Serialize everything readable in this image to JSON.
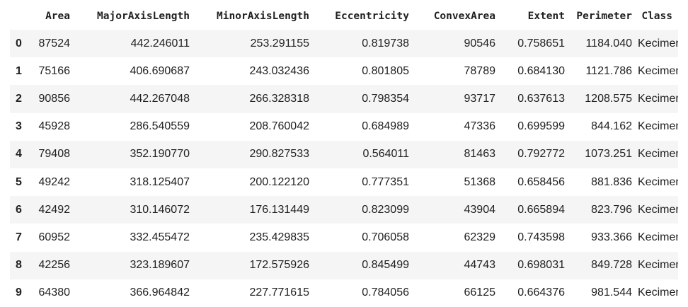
{
  "table": {
    "columns": [
      "Area",
      "MajorAxisLength",
      "MinorAxisLength",
      "Eccentricity",
      "ConvexArea",
      "Extent",
      "Perimeter",
      "Class"
    ],
    "rows": [
      {
        "index": "0",
        "cells": [
          "87524",
          "442.246011",
          "253.291155",
          "0.819738",
          "90546",
          "0.758651",
          "1184.040",
          "Kecimen"
        ]
      },
      {
        "index": "1",
        "cells": [
          "75166",
          "406.690687",
          "243.032436",
          "0.801805",
          "78789",
          "0.684130",
          "1121.786",
          "Kecimen"
        ]
      },
      {
        "index": "2",
        "cells": [
          "90856",
          "442.267048",
          "266.328318",
          "0.798354",
          "93717",
          "0.637613",
          "1208.575",
          "Kecimen"
        ]
      },
      {
        "index": "3",
        "cells": [
          "45928",
          "286.540559",
          "208.760042",
          "0.684989",
          "47336",
          "0.699599",
          "844.162",
          "Kecimen"
        ]
      },
      {
        "index": "4",
        "cells": [
          "79408",
          "352.190770",
          "290.827533",
          "0.564011",
          "81463",
          "0.792772",
          "1073.251",
          "Kecimen"
        ]
      },
      {
        "index": "5",
        "cells": [
          "49242",
          "318.125407",
          "200.122120",
          "0.777351",
          "51368",
          "0.658456",
          "881.836",
          "Kecimen"
        ]
      },
      {
        "index": "6",
        "cells": [
          "42492",
          "310.146072",
          "176.131449",
          "0.823099",
          "43904",
          "0.665894",
          "823.796",
          "Kecimen"
        ]
      },
      {
        "index": "7",
        "cells": [
          "60952",
          "332.455472",
          "235.429835",
          "0.706058",
          "62329",
          "0.743598",
          "933.366",
          "Kecimen"
        ]
      },
      {
        "index": "8",
        "cells": [
          "42256",
          "323.189607",
          "172.575926",
          "0.845499",
          "44743",
          "0.698031",
          "849.728",
          "Kecimen"
        ]
      },
      {
        "index": "9",
        "cells": [
          "64380",
          "366.964842",
          "227.771615",
          "0.784056",
          "66125",
          "0.664376",
          "981.544",
          "Kecimen"
        ]
      }
    ]
  }
}
